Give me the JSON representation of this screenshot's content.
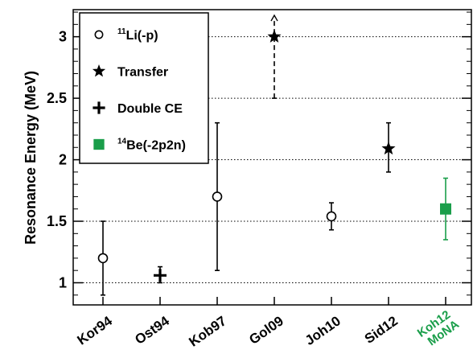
{
  "chart_data": {
    "type": "scatter",
    "title": "",
    "xlabel": "",
    "ylabel": "Resonance Energy (MeV)",
    "ylim": [
      0.82,
      3.22
    ],
    "yticks": [
      "1",
      "1.5",
      "2",
      "2.5",
      "3"
    ],
    "grid": "horizontal dotted",
    "categories": [
      "Kor94",
      "Ost94",
      "Kob97",
      "Gol09",
      "Joh10",
      "Sid12",
      "Koh12 MoNA"
    ],
    "highlight_category_color": "#1a9e4a",
    "series": [
      {
        "name": "11Li(-p)",
        "marker": "open-circle",
        "points": [
          {
            "category": "Kor94",
            "y": 1.2,
            "err_low": 0.9,
            "err_high": 1.5
          },
          {
            "category": "Kob97",
            "y": 1.7,
            "err_low": 1.1,
            "err_high": 2.3
          },
          {
            "category": "Joh10",
            "y": 1.54,
            "err_low": 1.43,
            "err_high": 1.65
          }
        ]
      },
      {
        "name": "Transfer",
        "marker": "star",
        "points": [
          {
            "category": "Gol09",
            "y": 3.0,
            "err_low": 2.5,
            "err_high": 3.2,
            "dashed": true,
            "upper_arrow": true
          },
          {
            "category": "Sid12",
            "y": 2.09,
            "err_low": 1.9,
            "err_high": 2.3
          }
        ]
      },
      {
        "name": "Double CE",
        "marker": "plus",
        "points": [
          {
            "category": "Ost94",
            "y": 1.06,
            "err_low": 1.0,
            "err_high": 1.13
          }
        ]
      },
      {
        "name": "14Be(-2p2n)",
        "marker": "filled-square",
        "color": "#1a9e4a",
        "points": [
          {
            "category": "Koh12 MoNA",
            "y": 1.6,
            "err_low": 1.35,
            "err_high": 1.85
          }
        ]
      }
    ],
    "legend": {
      "position": "top-left",
      "entries": [
        {
          "sup": "11",
          "text": "Li(-p)",
          "marker": "open-circle"
        },
        {
          "sup": "",
          "text": "Transfer",
          "marker": "star"
        },
        {
          "sup": "",
          "text": "Double CE",
          "marker": "plus"
        },
        {
          "sup": "14",
          "text": "Be(-2p2n)",
          "marker": "filled-square",
          "color": "#1a9e4a"
        }
      ]
    }
  }
}
